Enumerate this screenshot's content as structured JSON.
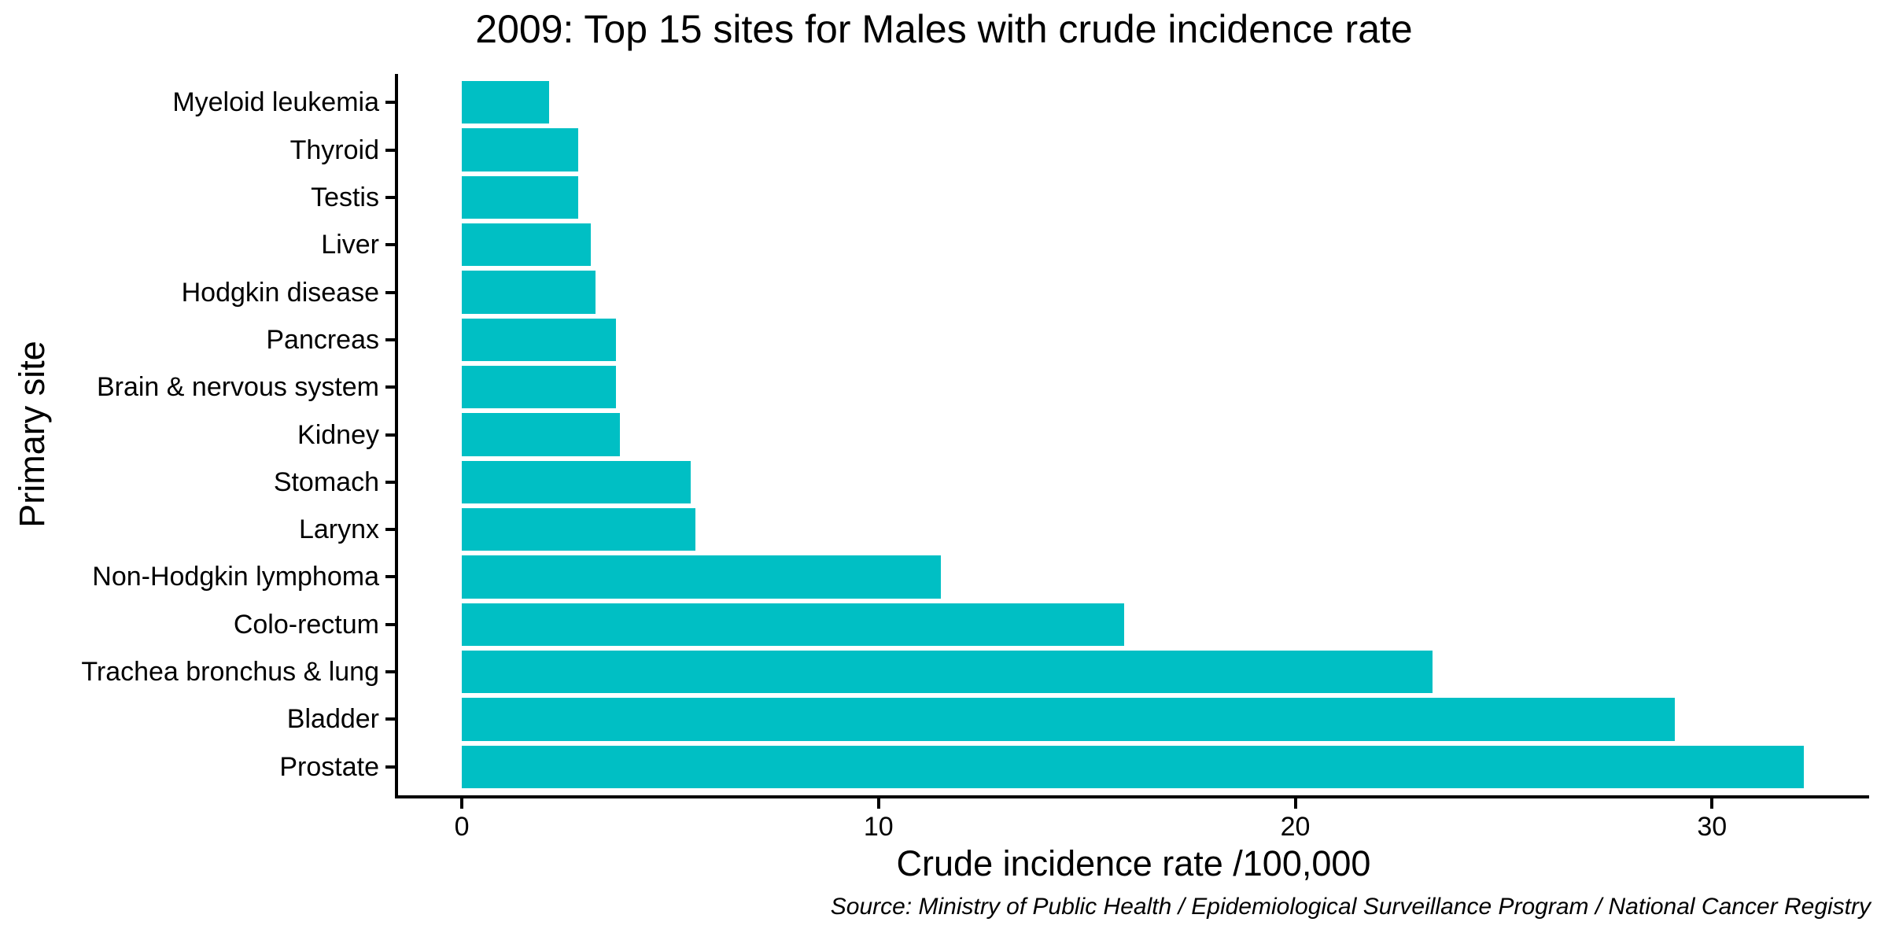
{
  "chart_data": {
    "type": "bar",
    "orientation": "horizontal",
    "title": "2009: Top 15 sites for Males with crude incidence rate",
    "xlabel": "Crude incidence rate /100,000",
    "ylabel": "Primary site",
    "caption": "Source: Ministry of Public Health / Epidemiological Surveillance Program / National Cancer Registry",
    "categories": [
      "Myeloid leukemia",
      "Thyroid",
      "Testis",
      "Liver",
      "Hodgkin disease",
      "Pancreas",
      "Brain & nervous system",
      "Kidney",
      "Stomach",
      "Larynx",
      "Non-Hodgkin lymphoma",
      "Colo-rectum",
      "Trachea bronchus & lung",
      "Bladder",
      "Prostate"
    ],
    "values": [
      2.1,
      2.8,
      2.8,
      3.1,
      3.2,
      3.7,
      3.7,
      3.8,
      5.5,
      5.6,
      11.5,
      15.9,
      23.3,
      29.1,
      32.2
    ],
    "x_ticks": [
      "0",
      "10",
      "20",
      "30"
    ],
    "x_tick_values": [
      0,
      10,
      20,
      30
    ],
    "xlim": [
      -1.53,
      33.77
    ],
    "bar_color": "#00BFC4",
    "axis_color": "#000000",
    "text_color": "#000000",
    "background_color": "#FFFFFF",
    "grid": false,
    "legend": null
  }
}
